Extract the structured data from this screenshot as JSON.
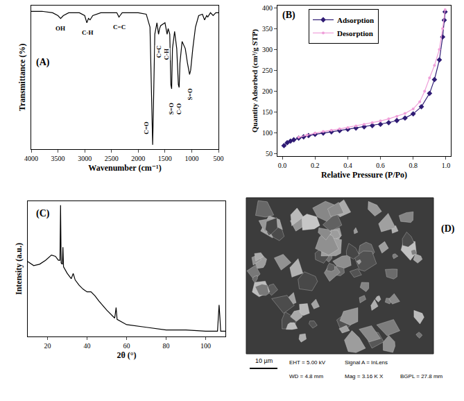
{
  "chart_data": [
    {
      "type": "line",
      "title": "(A)",
      "x_label": "Wavenumber (cm⁻¹)",
      "y_label": "Transmittance (%)",
      "color": "#000000",
      "grid": false,
      "tick_labels": "x",
      "x": [
        4000,
        3800,
        3600,
        3500,
        3450,
        3400,
        3300,
        3100,
        3000,
        2960,
        2930,
        2900,
        2850,
        2700,
        2400,
        2360,
        2340,
        2300,
        2000,
        1850,
        1780,
        1750,
        1730,
        1715,
        1690,
        1650,
        1620,
        1600,
        1580,
        1500,
        1460,
        1440,
        1410,
        1390,
        1375,
        1360,
        1320,
        1280,
        1250,
        1235,
        1220,
        1180,
        1120,
        1080,
        1040,
        1020,
        980,
        930,
        870,
        800,
        760,
        720,
        700,
        650,
        600,
        550,
        500
      ],
      "values": [
        96,
        96,
        95,
        93,
        91,
        93,
        95,
        95,
        93,
        88,
        91,
        90,
        93,
        95,
        95,
        92,
        93,
        95,
        95,
        94,
        85,
        40,
        3,
        30,
        80,
        88,
        80,
        84,
        86,
        88,
        80,
        84,
        80,
        45,
        42,
        70,
        82,
        70,
        45,
        43,
        60,
        75,
        70,
        60,
        52,
        55,
        70,
        85,
        93,
        94,
        90,
        93,
        92,
        95,
        93,
        95,
        95
      ],
      "xlim": [
        4000,
        500
      ],
      "xticks": [
        4000,
        3500,
        3000,
        2500,
        2000,
        1500,
        1000,
        500
      ],
      "ylim": [
        0,
        100
      ],
      "yticks": [],
      "annotations": [
        {
          "text": "OH",
          "x": 3450,
          "y": 84
        },
        {
          "text": "C-H",
          "x": 2950,
          "y": 81
        },
        {
          "text": "C=C",
          "x": 2350,
          "y": 85
        },
        {
          "text": "C=O",
          "x": 1850,
          "y": 15
        },
        {
          "text": "C=C",
          "x": 1610,
          "y": 68
        },
        {
          "text": "C-H",
          "x": 1470,
          "y": 66
        },
        {
          "text": "S=O",
          "x": 1380,
          "y": 28
        },
        {
          "text": "C-O",
          "x": 1235,
          "y": 28
        },
        {
          "text": "S=O",
          "x": 1030,
          "y": 38
        }
      ]
    },
    {
      "type": "line",
      "title": "(B)",
      "x_label": "Relative Pressure (P/Po)",
      "y_label": "Quantity Adsorbed (cm³/g STP)",
      "grid": false,
      "legend": "top left",
      "series": [
        {
          "name": "Adsorption",
          "color": "#2f1b74",
          "marker": "diamond",
          "x": [
            0.01,
            0.03,
            0.05,
            0.07,
            0.1,
            0.13,
            0.16,
            0.2,
            0.25,
            0.3,
            0.35,
            0.4,
            0.45,
            0.5,
            0.55,
            0.6,
            0.65,
            0.7,
            0.75,
            0.8,
            0.85,
            0.9,
            0.93,
            0.96,
            0.98,
            0.99,
            0.995
          ],
          "values": [
            70,
            77,
            81,
            84,
            88,
            91,
            94,
            97,
            100,
            103,
            106,
            109,
            112,
            115,
            118,
            121,
            125,
            130,
            136,
            146,
            163,
            195,
            228,
            275,
            330,
            370,
            390
          ]
        },
        {
          "name": "Desorption",
          "color": "#ef9fd9",
          "marker": "circle",
          "x": [
            0.995,
            0.98,
            0.96,
            0.93,
            0.9,
            0.87,
            0.84,
            0.8,
            0.75,
            0.7,
            0.65,
            0.6,
            0.55,
            0.5,
            0.45,
            0.4,
            0.35,
            0.3,
            0.25,
            0.2,
            0.15,
            0.1
          ],
          "values": [
            395,
            350,
            300,
            262,
            232,
            200,
            175,
            158,
            147,
            140,
            134,
            129,
            125,
            121,
            117,
            113,
            110,
            107,
            104,
            100,
            95,
            90
          ]
        }
      ],
      "xlim": [
        -0.03,
        1.03
      ],
      "xticks": [
        {
          "value": 0,
          "label": "0.0"
        },
        0.2,
        0.4,
        0.6,
        0.8,
        {
          "value": 1,
          "label": "1.0"
        }
      ],
      "ylim": [
        45,
        405
      ],
      "yticks": [
        50,
        100,
        150,
        200,
        250,
        300,
        350,
        400
      ]
    },
    {
      "type": "line",
      "title": "(C)",
      "x_label": "2θ (°)",
      "y_label": "Intensity (a.u.)",
      "color": "#000000",
      "grid": false,
      "tick_labels": "x",
      "x": [
        10,
        13,
        16,
        19,
        22,
        24,
        25.5,
        26.3,
        26.6,
        26.9,
        27.5,
        27.8,
        28.1,
        30,
        32,
        33,
        34,
        36,
        38,
        40,
        42,
        44,
        46,
        50,
        54,
        54.7,
        55.2,
        60,
        70,
        80,
        90,
        100,
        106,
        106.8,
        107.2,
        107.6,
        110
      ],
      "values": [
        57,
        54,
        55,
        58,
        62,
        61,
        58,
        58,
        100,
        56,
        55,
        68,
        53,
        48,
        44,
        48,
        43,
        39,
        36,
        34,
        34,
        31,
        27,
        20,
        14,
        22,
        13,
        9,
        7,
        5,
        5,
        4,
        4,
        24,
        15,
        4,
        4
      ],
      "xlim": [
        10,
        110
      ],
      "xticks": [
        20,
        40,
        60,
        80,
        100
      ],
      "ylim": [
        0,
        103
      ],
      "yticks": []
    }
  ],
  "image_panel": {
    "label": "(D)",
    "scale_bar": "10 µm",
    "info": [
      [
        "EHT = 5.00 kV",
        "Signal A = InLens"
      ],
      [
        "WD = 4.8 mm",
        "Mag = 3.16 K X",
        "BGPL = 27.8 mm"
      ]
    ]
  }
}
